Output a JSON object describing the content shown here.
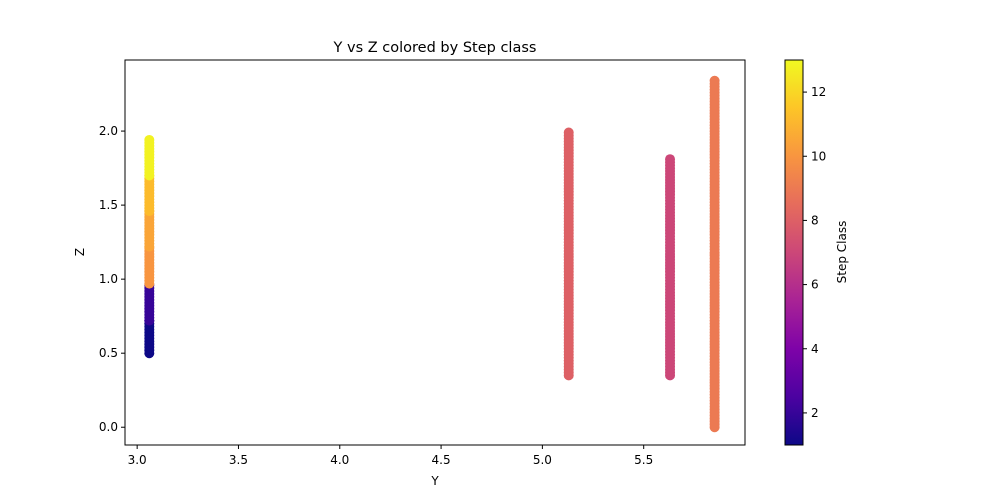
{
  "chart_data": {
    "type": "scatter",
    "title": "Y vs Z colored by Step class",
    "xlabel": "Y",
    "ylabel": "Z",
    "xlim": [
      2.94,
      6.0
    ],
    "ylim": [
      -0.12,
      2.48
    ],
    "xticks": [
      3.0,
      3.5,
      4.0,
      4.5,
      5.0,
      5.5
    ],
    "yticks": [
      0.0,
      0.5,
      1.0,
      1.5,
      2.0
    ],
    "grid": false,
    "colormap": "plasma",
    "colorbar": {
      "label": "Step Class",
      "range": [
        1,
        13
      ],
      "ticks": [
        2,
        4,
        6,
        8,
        10,
        12
      ]
    },
    "series": [
      {
        "y": 3.06,
        "segments": [
          {
            "z_from": 0.5,
            "z_to": 0.72,
            "step_class": 1
          },
          {
            "z_from": 0.72,
            "z_to": 0.97,
            "step_class": 2
          },
          {
            "z_from": 0.97,
            "z_to": 1.22,
            "step_class": 10
          },
          {
            "z_from": 1.22,
            "z_to": 1.46,
            "step_class": 10.5
          },
          {
            "z_from": 1.46,
            "z_to": 1.7,
            "step_class": 11.2
          },
          {
            "z_from": 1.7,
            "z_to": 1.94,
            "step_class": 12.8
          }
        ]
      },
      {
        "y": 5.13,
        "segments": [
          {
            "z_from": 0.35,
            "z_to": 2.0,
            "step_class": 8
          }
        ]
      },
      {
        "y": 5.63,
        "segments": [
          {
            "z_from": 0.35,
            "z_to": 1.82,
            "step_class": 7
          }
        ]
      },
      {
        "y": 5.85,
        "segments": [
          {
            "z_from": 0.0,
            "z_to": 2.35,
            "step_class": 9
          }
        ]
      }
    ]
  }
}
